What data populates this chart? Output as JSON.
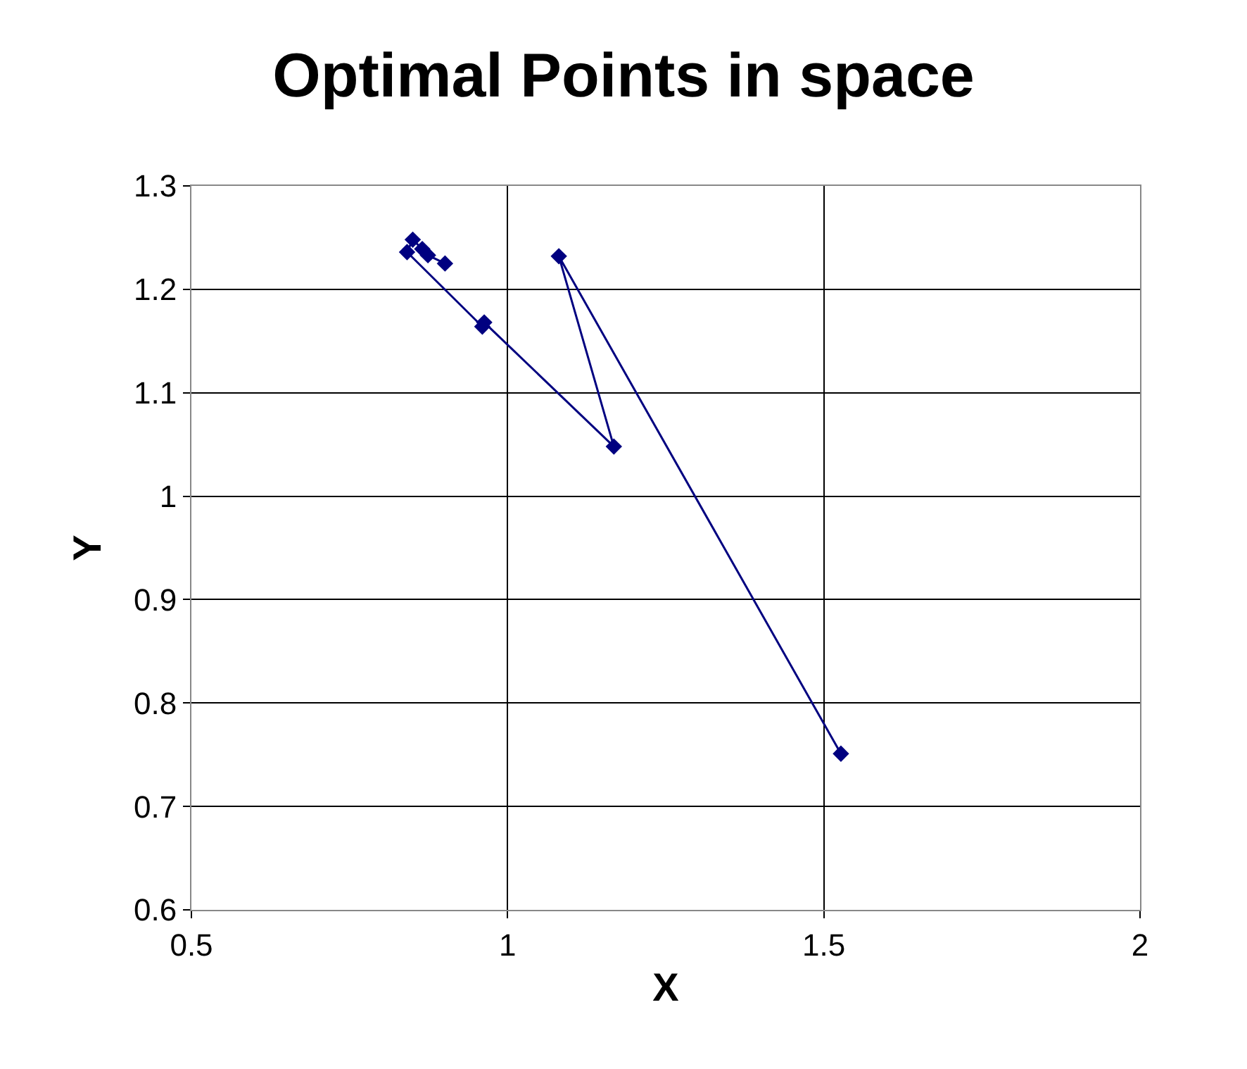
{
  "chart_data": {
    "type": "line",
    "title": "Optimal Points in space",
    "xlabel": "X",
    "ylabel": "Y",
    "x": [
      1.527,
      1.081,
      1.168,
      0.963,
      0.96,
      0.841,
      0.85,
      0.865,
      0.874,
      0.901
    ],
    "series": [
      {
        "color": "#000080",
        "values": [
          0.751,
          1.232,
          1.048,
          1.168,
          1.164,
          1.236,
          1.248,
          1.239,
          1.233,
          1.225
        ]
      }
    ],
    "xlim": [
      0.5,
      2
    ],
    "xticks": [
      0.5,
      1,
      1.5,
      2
    ],
    "ylim": [
      0.6,
      1.3
    ],
    "yticks": [
      0.6,
      0.7,
      0.8,
      0.9,
      1,
      1.1,
      1.2,
      1.3
    ],
    "grid": true,
    "marker": "diamond",
    "line_style": "solid",
    "legend": false
  }
}
